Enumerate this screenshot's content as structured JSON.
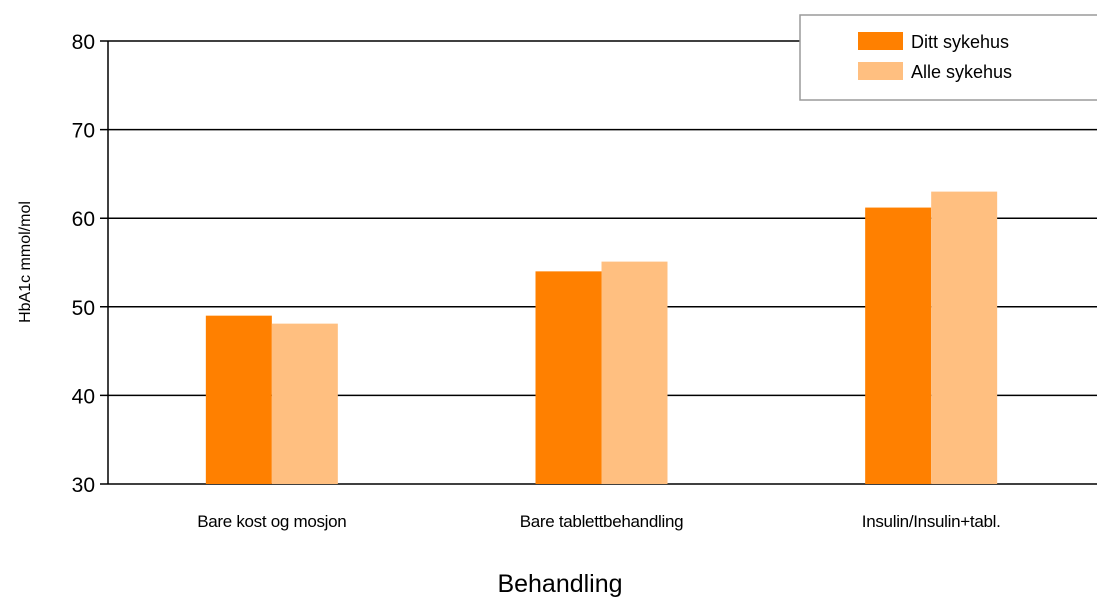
{
  "chart_data": {
    "type": "bar",
    "title": "",
    "xlabel": "Behandling",
    "ylabel": "HbA1c mmol/mol",
    "ylim": [
      30,
      80
    ],
    "yticks": [
      30,
      40,
      50,
      60,
      70,
      80
    ],
    "categories": [
      "Bare kost og mosjon",
      "Bare tablettbehandling",
      "Insulin/Insulin+tabl."
    ],
    "series": [
      {
        "name": "Ditt sykehus",
        "values": [
          49,
          54,
          61.2
        ],
        "color": "#ff8000"
      },
      {
        "name": "Alle sykehus",
        "values": [
          48.1,
          55.1,
          63
        ],
        "color": "#ffbf80"
      }
    ],
    "grid": "horizontal",
    "legend": "top-right"
  }
}
